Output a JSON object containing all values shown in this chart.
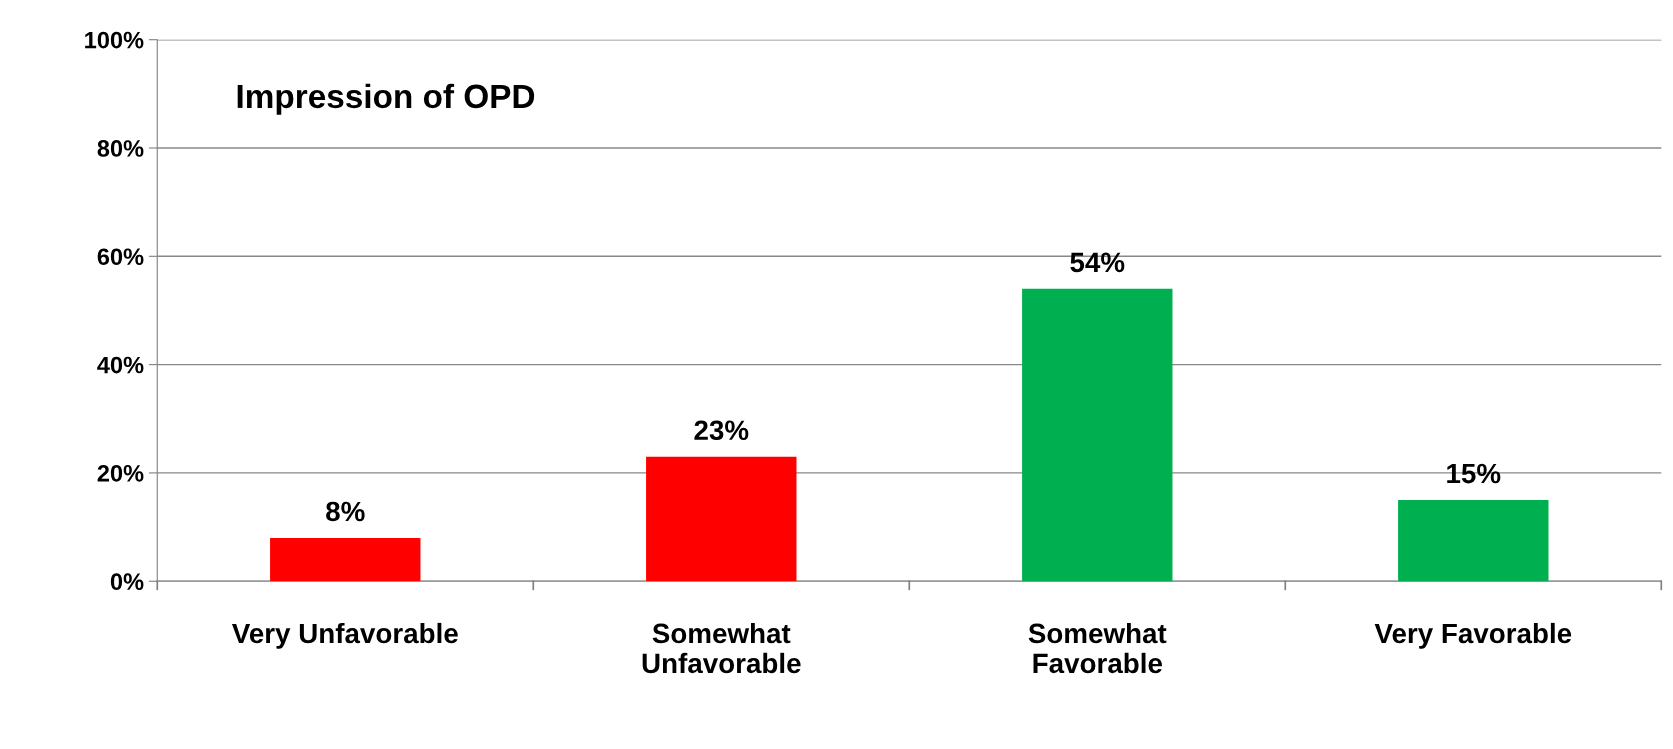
{
  "chart_data": {
    "type": "bar",
    "categories": [
      "Very Unfavorable",
      "Somewhat\nUnfavorable",
      "Somewhat\nFavorable",
      "Very Favorable"
    ],
    "values": [
      8,
      23,
      54,
      15
    ],
    "colors": [
      "#ff0000",
      "#ff0000",
      "#00b050",
      "#00b050"
    ],
    "value_labels": [
      "8%",
      "23%",
      "54%",
      "15%"
    ],
    "annotations": [
      "Impression of OPD"
    ],
    "ylim": [
      0,
      100
    ],
    "yticks": [
      {
        "value": 0,
        "label": "0%"
      },
      {
        "value": 20,
        "label": "20%"
      },
      {
        "value": 40,
        "label": "40%"
      },
      {
        "value": 60,
        "label": "60%"
      },
      {
        "value": 80,
        "label": "80%"
      },
      {
        "value": 100,
        "label": "100%"
      }
    ],
    "grid": "y"
  }
}
